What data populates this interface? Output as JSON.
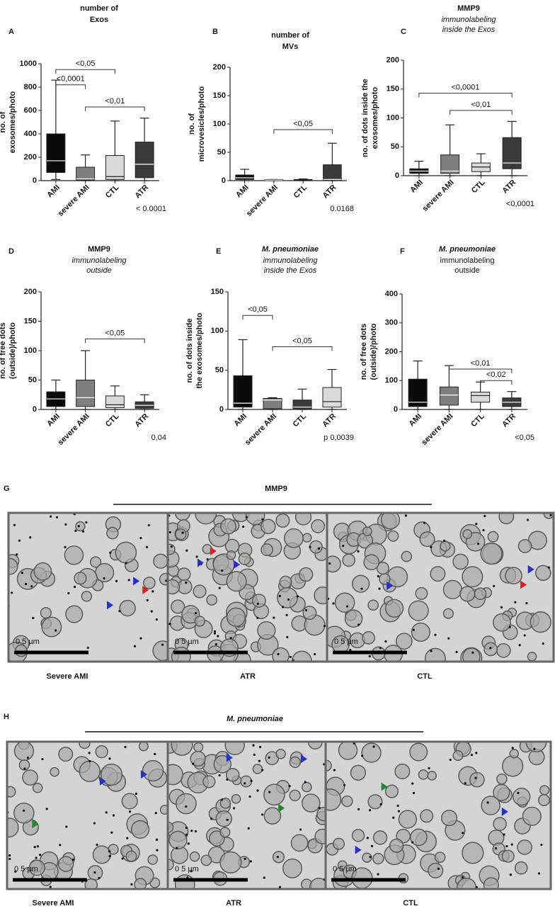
{
  "chart_data": [
    {
      "type": "box",
      "panel": "A",
      "title": [
        "number of",
        "Exos"
      ],
      "title_italic": false,
      "subtitle": [],
      "subtitle_italic": false,
      "ylabel": [
        "no. of",
        "exosomes/photo"
      ],
      "categories": [
        "AMI",
        "severe AMI",
        "CTL",
        "ATR"
      ],
      "values": [
        [
          10,
          70,
          170,
          400,
          860
        ],
        [
          0,
          5,
          15,
          115,
          220
        ],
        [
          0,
          10,
          35,
          215,
          510
        ],
        [
          0,
          25,
          140,
          330,
          535
        ]
      ],
      "colors": [
        "#0a0a0a",
        "#7f7f7f",
        "#dadada",
        "#3a3a3a"
      ],
      "ylim": [
        0,
        1000
      ],
      "yticks": [
        0,
        200,
        400,
        600,
        800,
        1000
      ],
      "brackets": [
        {
          "between": [
            0,
            2
          ],
          "y": 950,
          "label": "<0,05"
        },
        {
          "between": [
            0,
            1
          ],
          "y": 820,
          "label": "<0,0001"
        },
        {
          "between": [
            1,
            3
          ],
          "y": 630,
          "label": "<0,01"
        }
      ],
      "p_label": "< 0.0001"
    },
    {
      "type": "box",
      "panel": "B",
      "title": [
        "number of",
        "MVs"
      ],
      "title_italic": false,
      "subtitle": [],
      "subtitle_italic": false,
      "ylabel": [
        "no. of",
        "microvesicles/photo"
      ],
      "categories": [
        "AMI",
        "severe AMI",
        "CTL",
        "ATR"
      ],
      "values": [
        [
          0,
          2,
          5,
          10,
          20
        ],
        [
          0,
          0,
          1,
          2,
          2
        ],
        [
          0,
          0,
          1,
          2,
          3
        ],
        [
          0,
          0,
          2,
          28,
          66
        ]
      ],
      "colors": [
        "#0a0a0a",
        "#7f7f7f",
        "#dadada",
        "#3a3a3a"
      ],
      "ylim": [
        0,
        200
      ],
      "yticks": [
        0,
        50,
        100,
        150,
        200
      ],
      "brackets": [
        {
          "between": [
            1,
            3
          ],
          "y": 90,
          "label": "<0,05"
        }
      ],
      "p_label": "0.0168"
    },
    {
      "type": "box",
      "panel": "C",
      "title": [
        "MMP9"
      ],
      "title_italic": false,
      "subtitle": [
        "immunolabeling",
        "inside the Exos"
      ],
      "subtitle_italic": true,
      "ylabel": [
        "no. of dots inside the",
        "exosomes/photo"
      ],
      "categories": [
        "AMI",
        "severe AMI",
        "CTL",
        "ATR"
      ],
      "values": [
        [
          0,
          4,
          8,
          12,
          25
        ],
        [
          0,
          4,
          8,
          36,
          88
        ],
        [
          0,
          7,
          15,
          22,
          38
        ],
        [
          0,
          12,
          22,
          66,
          94
        ]
      ],
      "colors": [
        "#0a0a0a",
        "#7f7f7f",
        "#dadada",
        "#3a3a3a"
      ],
      "ylim": [
        0,
        200
      ],
      "yticks": [
        0,
        50,
        100,
        150,
        200
      ],
      "brackets": [
        {
          "between": [
            0,
            3
          ],
          "y": 143,
          "label": "<0,0001"
        },
        {
          "between": [
            1,
            3
          ],
          "y": 113,
          "label": "<0,01"
        }
      ],
      "p_label": "<0,0001"
    },
    {
      "type": "box",
      "panel": "D",
      "title": [
        "MMP9"
      ],
      "title_italic": false,
      "subtitle": [
        "immunolabeling",
        "outside"
      ],
      "subtitle_italic": true,
      "ylabel": [
        "no. of free dots",
        "(outside)/photo"
      ],
      "categories": [
        "AMI",
        "severe AMI",
        "CTL",
        "ATR"
      ],
      "values": [
        [
          0,
          5,
          18,
          30,
          50
        ],
        [
          0,
          5,
          20,
          50,
          100
        ],
        [
          0,
          3,
          8,
          23,
          40
        ],
        [
          0,
          2,
          7,
          13,
          25
        ]
      ],
      "colors": [
        "#0a0a0a",
        "#7f7f7f",
        "#dadada",
        "#3a3a3a"
      ],
      "ylim": [
        0,
        200
      ],
      "yticks": [
        0,
        50,
        100,
        150,
        200
      ],
      "brackets": [
        {
          "between": [
            1,
            3
          ],
          "y": 120,
          "label": "<0,05"
        }
      ],
      "p_label": "0,04"
    },
    {
      "type": "box",
      "panel": "E",
      "title": [
        "M. pneumoniae"
      ],
      "title_italic": true,
      "subtitle": [
        "immunolabeling",
        "inside the Exos"
      ],
      "subtitle_italic": true,
      "ylabel": [
        "no. of dots inside",
        "the exosomes/photo"
      ],
      "categories": [
        "AMI",
        "severe AMI",
        "CTL",
        "ATR"
      ],
      "values": [
        [
          0,
          3,
          8,
          43,
          89
        ],
        [
          0,
          1,
          12,
          14,
          15
        ],
        [
          0,
          1,
          3,
          12,
          26
        ],
        [
          0,
          3,
          10,
          28,
          51
        ]
      ],
      "colors": [
        "#0a0a0a",
        "#7f7f7f",
        "#3a3a3a",
        "#dadada"
      ],
      "ylim": [
        0,
        150
      ],
      "yticks": [
        0,
        50,
        100,
        150
      ],
      "brackets": [
        {
          "between": [
            0,
            1
          ],
          "y": 120,
          "label": "<0,05"
        },
        {
          "between": [
            1,
            3
          ],
          "y": 80,
          "label": "<0,05"
        }
      ],
      "p_label": "p 0,0039"
    },
    {
      "type": "box",
      "panel": "F",
      "title": [
        "M. pneumoniae"
      ],
      "title_italic": true,
      "subtitle": [
        "immunolabeling",
        "outside"
      ],
      "subtitle_italic": false,
      "ylabel": [
        "no. of free dots",
        "(outside)/photo"
      ],
      "categories": [
        "AMI",
        "severe AMI",
        "CTL",
        "ATR"
      ],
      "values": [
        [
          0,
          10,
          25,
          105,
          168
        ],
        [
          0,
          15,
          50,
          78,
          152
        ],
        [
          0,
          25,
          48,
          60,
          95
        ],
        [
          0,
          10,
          25,
          40,
          62
        ]
      ],
      "colors": [
        "#0a0a0a",
        "#7f7f7f",
        "#dadada",
        "#3a3a3a"
      ],
      "ylim": [
        0,
        400
      ],
      "yticks": [
        0,
        100,
        200,
        300,
        400
      ],
      "brackets": [
        {
          "between": [
            1,
            3
          ],
          "y": 140,
          "label": "<0,01"
        },
        {
          "between": [
            2,
            3
          ],
          "y": 100,
          "label": "<0,02"
        }
      ],
      "p_label": "<0,05"
    }
  ],
  "image_panels": [
    {
      "panel": "G",
      "title": "MMP9",
      "title_italic": false,
      "labels": [
        "Severe AMI",
        "ATR",
        "CTL"
      ],
      "scale": "0 5 µm"
    },
    {
      "panel": "H",
      "title": "M. pneumoniae",
      "title_italic": true,
      "labels": [
        "Severe AMI",
        "ATR",
        "CTL"
      ],
      "scale": "0 5 µm"
    }
  ]
}
